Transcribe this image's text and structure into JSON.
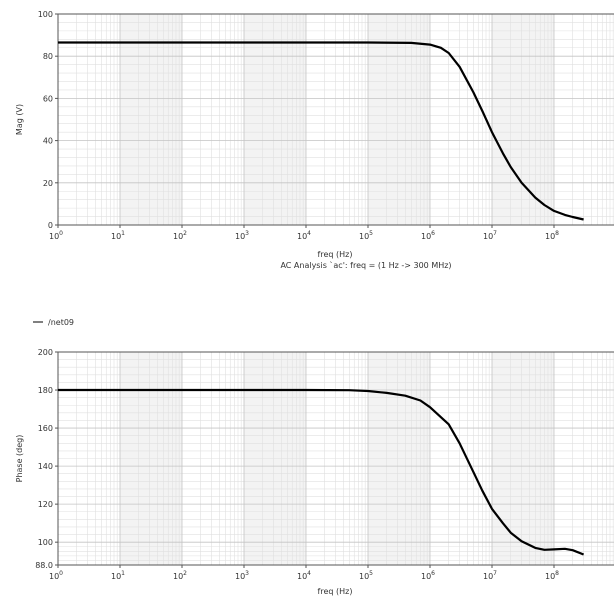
{
  "caption": "AC Analysis `ac': freq = (1 Hz -> 300 MHz)",
  "legend": {
    "label": "/net09",
    "color": "#000000"
  },
  "chart_data": [
    {
      "type": "line",
      "xscale": "log",
      "xlim": [
        1,
        300000000
      ],
      "ylim": [
        0,
        100
      ],
      "xlabel": "freq (Hz)",
      "ylabel": "Mag (V)",
      "grid": true,
      "x_ticks": [
        {
          "base": "10",
          "exp": "0",
          "value": 1
        },
        {
          "base": "10",
          "exp": "1",
          "value": 10
        },
        {
          "base": "10",
          "exp": "2",
          "value": 100
        },
        {
          "base": "10",
          "exp": "3",
          "value": 1000
        },
        {
          "base": "10",
          "exp": "4",
          "value": 10000
        },
        {
          "base": "10",
          "exp": "5",
          "value": 100000
        },
        {
          "base": "10",
          "exp": "6",
          "value": 1000000
        },
        {
          "base": "10",
          "exp": "7",
          "value": 10000000
        },
        {
          "base": "10",
          "exp": "8",
          "value": 100000000
        }
      ],
      "y_ticks": [
        {
          "label": "0",
          "value": 0
        },
        {
          "label": "20",
          "value": 20
        },
        {
          "label": "40",
          "value": 40
        },
        {
          "label": "60",
          "value": 60
        },
        {
          "label": "80",
          "value": 80
        },
        {
          "label": "100",
          "value": 100
        }
      ],
      "series": [
        {
          "color": "#000000",
          "x": [
            1,
            10,
            100,
            1000,
            10000,
            100000,
            500000,
            1000000,
            1500000,
            2000000,
            3000000,
            5000000,
            7000000,
            10000000,
            15000000,
            20000000,
            30000000,
            50000000,
            70000000,
            100000000,
            150000000,
            200000000,
            300000000
          ],
          "y": [
            86.5,
            86.5,
            86.5,
            86.5,
            86.5,
            86.5,
            86.3,
            85.5,
            84,
            81.5,
            75,
            63,
            54,
            44,
            34,
            27.5,
            20,
            13,
            9.5,
            6.7,
            4.8,
            3.8,
            2.6
          ]
        }
      ]
    },
    {
      "type": "line",
      "xscale": "log",
      "xlim": [
        1,
        300000000
      ],
      "ylim": [
        88,
        200
      ],
      "xlabel": "freq (Hz)",
      "ylabel": "Phase (deg)",
      "grid": true,
      "x_ticks": [
        {
          "base": "10",
          "exp": "0",
          "value": 1
        },
        {
          "base": "10",
          "exp": "1",
          "value": 10
        },
        {
          "base": "10",
          "exp": "2",
          "value": 100
        },
        {
          "base": "10",
          "exp": "3",
          "value": 1000
        },
        {
          "base": "10",
          "exp": "4",
          "value": 10000
        },
        {
          "base": "10",
          "exp": "5",
          "value": 100000
        },
        {
          "base": "10",
          "exp": "6",
          "value": 1000000
        },
        {
          "base": "10",
          "exp": "7",
          "value": 10000000
        },
        {
          "base": "10",
          "exp": "8",
          "value": 100000000
        }
      ],
      "y_ticks": [
        {
          "label": "88.0",
          "value": 88
        },
        {
          "label": "100",
          "value": 100
        },
        {
          "label": "120",
          "value": 120
        },
        {
          "label": "140",
          "value": 140
        },
        {
          "label": "160",
          "value": 160
        },
        {
          "label": "180",
          "value": 180
        },
        {
          "label": "200",
          "value": 200
        }
      ],
      "series": [
        {
          "name": "/net09",
          "color": "#000000",
          "x": [
            1,
            10,
            100,
            1000,
            10000,
            50000,
            100000,
            200000,
            400000,
            700000,
            1000000,
            2000000,
            3000000,
            5000000,
            7000000,
            10000000,
            15000000,
            20000000,
            30000000,
            50000000,
            70000000,
            100000000,
            150000000,
            200000000,
            300000000
          ],
          "y": [
            180,
            180,
            180,
            180,
            180,
            179.9,
            179.5,
            178.5,
            177,
            174.5,
            171,
            162,
            152,
            137,
            127,
            117.5,
            110,
            105,
            100.5,
            97,
            96,
            96.2,
            96.5,
            95.8,
            93.5
          ]
        }
      ]
    }
  ]
}
